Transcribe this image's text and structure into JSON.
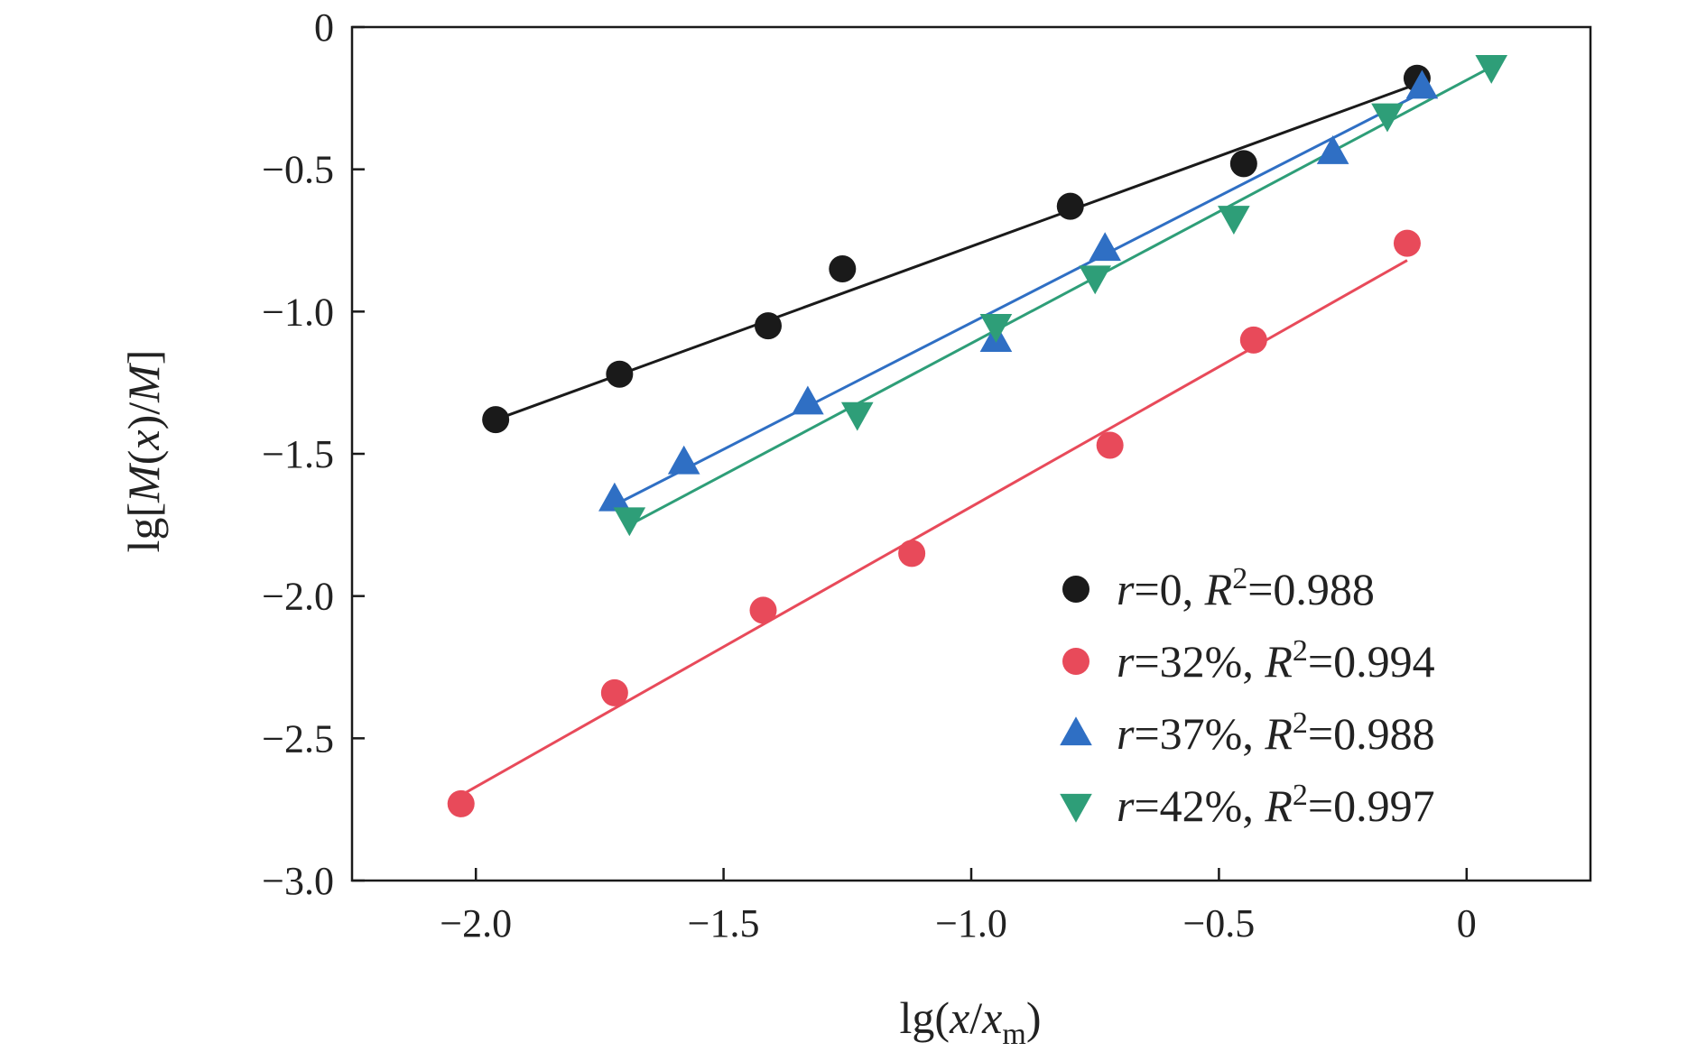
{
  "chart_data": {
    "type": "scatter",
    "xlabel": {
      "prefix": "lg(",
      "var1": "x",
      "sep": "/",
      "var2": "x",
      "sub": "m",
      "suffix": ")"
    },
    "ylabel": {
      "prefix": "lg[",
      "var1": "M",
      "mid": "(",
      "var2": "x",
      "mid2": ")/",
      "var3": "M",
      "suffix": "]"
    },
    "xlim": [
      -2.25,
      0.25
    ],
    "ylim": [
      -3.0,
      0.0
    ],
    "x_ticks": [
      -2.0,
      -1.5,
      -1.0,
      -0.5,
      0.0
    ],
    "x_tick_labels": [
      "−2.0",
      "−1.5",
      "−1.0",
      "−0.5",
      "0"
    ],
    "y_ticks": [
      0.0,
      -0.5,
      -1.0,
      -1.5,
      -2.0,
      -2.5,
      -3.0
    ],
    "y_tick_labels": [
      "0",
      "−0.5",
      "−1.0",
      "−1.5",
      "−2.0",
      "−2.5",
      "−3.0"
    ],
    "grid": false,
    "legend_position": "bottom-right",
    "series": [
      {
        "name": "r=0, R2=0.988",
        "legend": {
          "var": "r",
          "val": "=0, ",
          "rvar": "R",
          "sup": "2",
          "rval": "=0.988"
        },
        "marker": "circle",
        "color": "#1a1a1a",
        "x": [
          -1.96,
          -1.71,
          -1.41,
          -1.26,
          -0.8,
          -0.45,
          -0.1
        ],
        "y": [
          -1.38,
          -1.22,
          -1.05,
          -0.85,
          -0.63,
          -0.48,
          -0.18
        ],
        "fit": {
          "x": [
            -1.96,
            -0.1
          ],
          "y": [
            -1.38,
            -0.2
          ]
        }
      },
      {
        "name": "r=32%, R2=0.994",
        "legend": {
          "var": "r",
          "val": "=32%, ",
          "rvar": "R",
          "sup": "2",
          "rval": "=0.994"
        },
        "marker": "circle",
        "color": "#e84a5a",
        "x": [
          -2.03,
          -1.72,
          -1.42,
          -1.12,
          -0.72,
          -0.43,
          -0.12
        ],
        "y": [
          -2.73,
          -2.34,
          -2.05,
          -1.85,
          -1.47,
          -1.1,
          -0.76
        ],
        "fit": {
          "x": [
            -2.03,
            -0.12
          ],
          "y": [
            -2.7,
            -0.82
          ]
        }
      },
      {
        "name": "r=37%, R2=0.988",
        "legend": {
          "var": "r",
          "val": "=37%, ",
          "rvar": "R",
          "sup": "2",
          "rval": "=0.988"
        },
        "marker": "triangle-up",
        "color": "#2f6fc4",
        "x": [
          -1.72,
          -1.58,
          -1.33,
          -0.95,
          -0.73,
          -0.27,
          -0.09
        ],
        "y": [
          -1.66,
          -1.53,
          -1.32,
          -1.1,
          -0.78,
          -0.44,
          -0.21
        ],
        "fit": {
          "x": [
            -1.72,
            -0.09
          ],
          "y": [
            -1.68,
            -0.23
          ]
        }
      },
      {
        "name": "r=42%, R2=0.997",
        "legend": {
          "var": "r",
          "val": "=42%, ",
          "rvar": "R",
          "sup": "2",
          "rval": "=0.997"
        },
        "marker": "triangle-down",
        "color": "#2e9e78",
        "x": [
          -1.69,
          -1.23,
          -0.95,
          -0.75,
          -0.47,
          -0.16,
          0.05
        ],
        "y": [
          -1.73,
          -1.36,
          -1.05,
          -0.88,
          -0.67,
          -0.31,
          -0.14
        ],
        "fit": {
          "x": [
            -1.69,
            0.05
          ],
          "y": [
            -1.75,
            -0.14
          ]
        }
      }
    ]
  }
}
